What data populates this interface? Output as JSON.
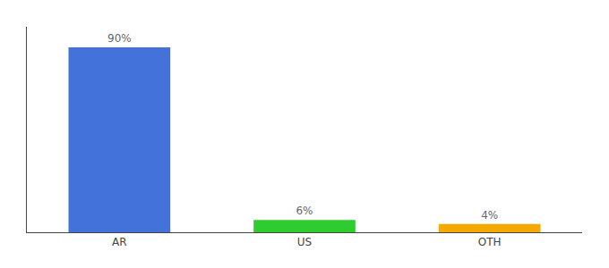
{
  "chart_data": {
    "type": "bar",
    "categories": [
      "AR",
      "US",
      "OTH"
    ],
    "values": [
      90,
      6,
      4
    ],
    "value_labels": [
      "90%",
      "6%",
      "4%"
    ],
    "data_labels": true,
    "colors": [
      "#4472db",
      "#2ecc2e",
      "#f5a800"
    ],
    "ylim": [
      0,
      100
    ],
    "grid": false,
    "tick_labels": "x"
  }
}
